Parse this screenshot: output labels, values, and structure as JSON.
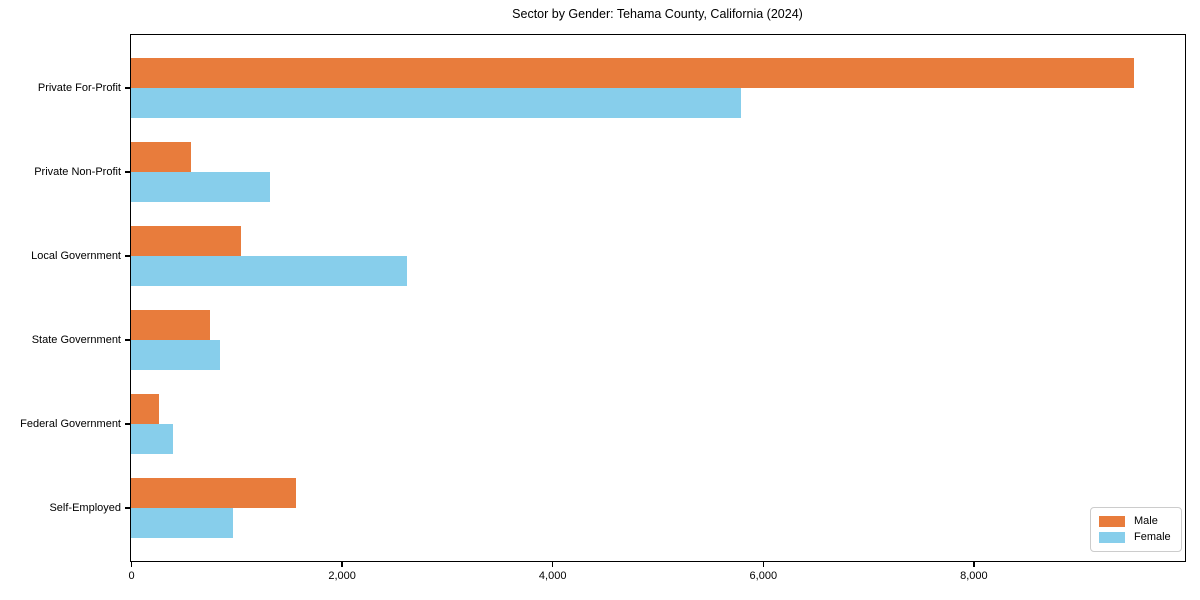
{
  "chart_data": {
    "type": "bar",
    "orientation": "horizontal",
    "title": "Sector by Gender: Tehama County, California (2024)",
    "categories": [
      "Private For-Profit",
      "Private Non-Profit",
      "Local Government",
      "State Government",
      "Federal Government",
      "Self-Employed"
    ],
    "series": [
      {
        "name": "Male",
        "color": "#e87c3c",
        "values": [
          9520,
          570,
          1040,
          750,
          270,
          1570
        ]
      },
      {
        "name": "Female",
        "color": "#87ceeb",
        "values": [
          5790,
          1320,
          2620,
          840,
          400,
          970
        ]
      }
    ],
    "xlim": [
      0,
      10000
    ],
    "xticks": [
      0,
      2000,
      4000,
      6000,
      8000
    ],
    "xtick_labels": [
      "0",
      "2,000",
      "4,000",
      "6,000",
      "8,000"
    ],
    "grid": false,
    "legend_position": "lower right"
  }
}
